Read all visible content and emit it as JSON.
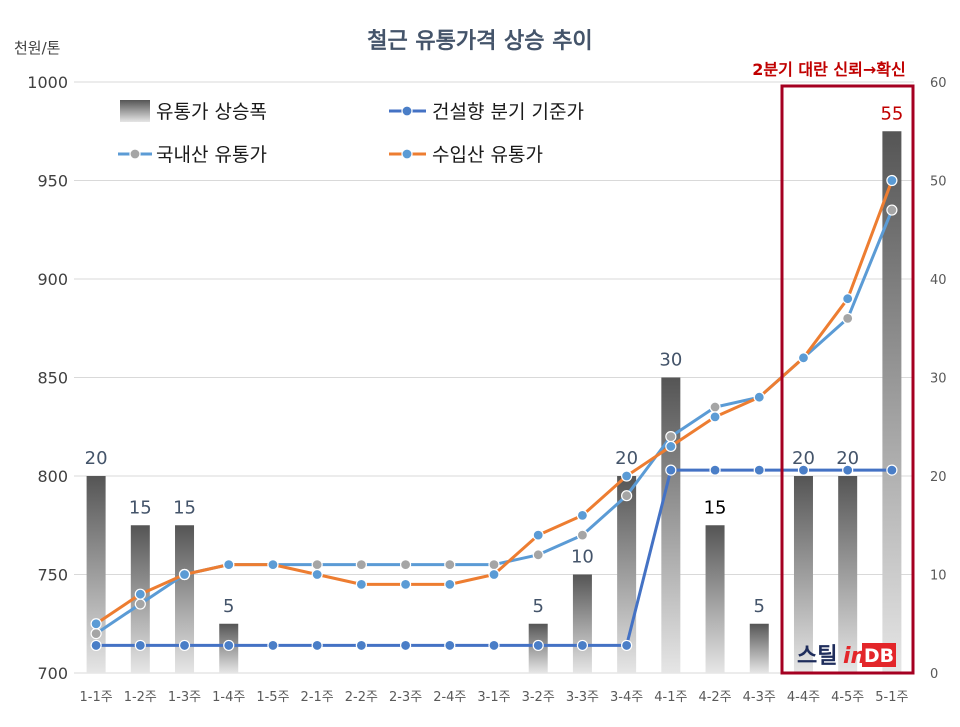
{
  "annotation": {
    "text": "2분기 대란 신뢰→확신",
    "color": "#C00000"
  },
  "logo": {
    "part1": "스틸",
    "part2": "in",
    "part3": "DB"
  },
  "chart_data": {
    "type": "bar",
    "title": "철근 유통가격 상승 추이",
    "categories": [
      "1-1주",
      "1-2주",
      "1-3주",
      "1-4주",
      "1-5주",
      "2-1주",
      "2-2주",
      "2-3주",
      "2-4주",
      "3-1주",
      "3-2주",
      "3-3주",
      "3-4주",
      "4-1주",
      "4-2주",
      "4-3주",
      "4-4주",
      "4-5주",
      "5-1주"
    ],
    "xlabel": "",
    "y_left": {
      "label": "천원/톤",
      "range": [
        700,
        1000
      ],
      "ticks": [
        700,
        750,
        800,
        850,
        900,
        950,
        1000
      ]
    },
    "y_right": {
      "range": [
        0,
        60
      ],
      "ticks": [
        0,
        10,
        20,
        30,
        40,
        50,
        60
      ]
    },
    "grid": true,
    "legend": "top-left",
    "series": [
      {
        "name": "유통가 상승폭",
        "type": "bar",
        "axis": "right",
        "values": [
          20,
          15,
          15,
          5,
          0,
          0,
          0,
          0,
          0,
          0,
          5,
          10,
          20,
          30,
          15,
          5,
          20,
          20,
          55
        ],
        "color": "#7F7F7F",
        "label_color": "#44546A",
        "label_color_overrides": {
          "4-2주": "#000000",
          "5-1주": "#C00000"
        }
      },
      {
        "name": "건설향 분기 기준가",
        "type": "line",
        "axis": "left",
        "values": [
          714,
          714,
          714,
          714,
          714,
          714,
          714,
          714,
          714,
          714,
          714,
          714,
          714,
          803,
          803,
          803,
          803,
          803,
          803
        ],
        "line_color": "#4472C4",
        "marker_color": "#4A7EC7"
      },
      {
        "name": "국내산 유통가",
        "type": "line",
        "axis": "left",
        "values": [
          720,
          735,
          750,
          755,
          755,
          755,
          755,
          755,
          755,
          755,
          760,
          770,
          790,
          820,
          835,
          840,
          860,
          880,
          935
        ],
        "line_color": "#5B9BD5",
        "marker_color": "#A5A5A5"
      },
      {
        "name": "수입산 유통가",
        "type": "line",
        "axis": "left",
        "values": [
          725,
          740,
          750,
          755,
          755,
          750,
          745,
          745,
          745,
          750,
          770,
          780,
          800,
          815,
          830,
          840,
          860,
          890,
          950
        ],
        "line_color": "#ED7D31",
        "marker_color": "#5B9BD5"
      }
    ]
  }
}
